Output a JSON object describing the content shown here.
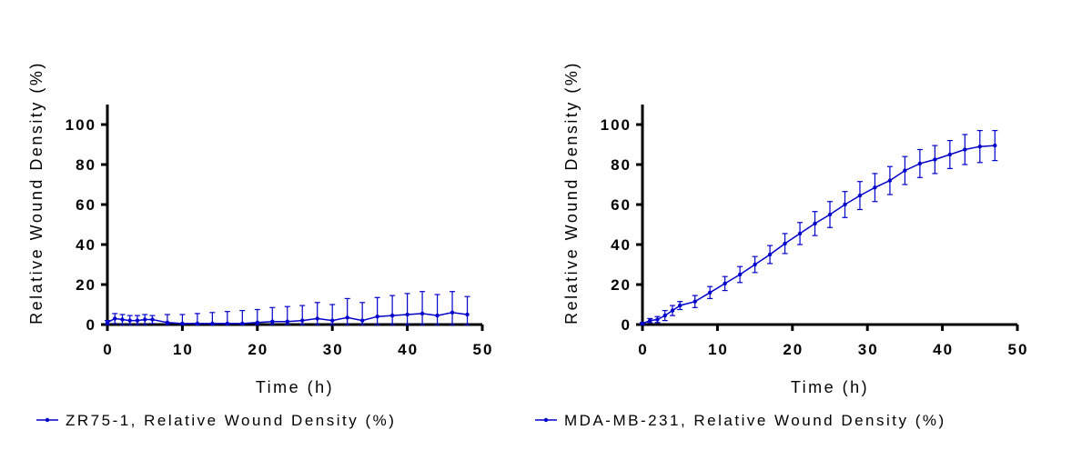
{
  "chart_data": [
    {
      "type": "line",
      "title": "",
      "xlabel": "Time (h)",
      "ylabel": "Relative Wound Density (%)",
      "xlim": [
        0,
        50
      ],
      "ylim": [
        0,
        110
      ],
      "xticks": [
        0,
        10,
        20,
        30,
        40,
        50
      ],
      "yticks": [
        0,
        20,
        40,
        60,
        80,
        100
      ],
      "grid": false,
      "legend_position": "bottom",
      "series": [
        {
          "name": "ZR75-1, Relative Wound Density (%)",
          "color": "#0000cc",
          "x": [
            0,
            1,
            2,
            3,
            4,
            5,
            6,
            8,
            10,
            12,
            14,
            16,
            18,
            20,
            22,
            24,
            26,
            28,
            30,
            32,
            34,
            36,
            38,
            40,
            42,
            44,
            46,
            48
          ],
          "y": [
            1,
            3,
            2.5,
            2,
            2,
            2.5,
            2.5,
            1,
            0.5,
            0.5,
            0.5,
            0.5,
            0.5,
            1,
            1.5,
            1.5,
            2,
            3,
            2,
            3.5,
            2,
            4,
            4.5,
            5,
            5.5,
            4.5,
            6,
            5
          ],
          "error": [
            1,
            2.5,
            2.5,
            2.5,
            2.5,
            2.5,
            2,
            4,
            4.5,
            5,
            5.5,
            6,
            6.5,
            6.5,
            7,
            7.5,
            7.5,
            8,
            8,
            9.5,
            9,
            9.5,
            10,
            10.5,
            11,
            10.5,
            10.5,
            9
          ]
        }
      ]
    },
    {
      "type": "line",
      "title": "",
      "xlabel": "Time (h)",
      "ylabel": "Relative Wound Density (%)",
      "xlim": [
        0,
        50
      ],
      "ylim": [
        0,
        110
      ],
      "xticks": [
        0,
        10,
        20,
        30,
        40,
        50
      ],
      "yticks": [
        0,
        20,
        40,
        60,
        80,
        100
      ],
      "grid": false,
      "legend_position": "bottom",
      "series": [
        {
          "name": "MDA-MB-231, Relative Wound Density (%)",
          "color": "#0000cc",
          "x": [
            0,
            1,
            2,
            3,
            4,
            5,
            7,
            9,
            11,
            13,
            15,
            17,
            19,
            21,
            23,
            25,
            27,
            29,
            31,
            33,
            35,
            37,
            39,
            41,
            43,
            45,
            47
          ],
          "y": [
            0.5,
            2,
            2.5,
            4.5,
            7,
            9.5,
            11.5,
            16,
            20.5,
            25,
            30,
            35,
            40.5,
            45.5,
            50.5,
            55,
            60,
            64.5,
            68.5,
            72,
            77,
            80.5,
            82.5,
            85,
            87.5,
            89,
            89.5
          ],
          "error": [
            0.5,
            1,
            1.5,
            2.5,
            2.5,
            2,
            3,
            3,
            3.5,
            4,
            4,
            4.5,
            5,
            5.5,
            6,
            6.5,
            6.5,
            7,
            7,
            7,
            7,
            7,
            7,
            7,
            7.5,
            8,
            7.5
          ]
        }
      ]
    }
  ]
}
